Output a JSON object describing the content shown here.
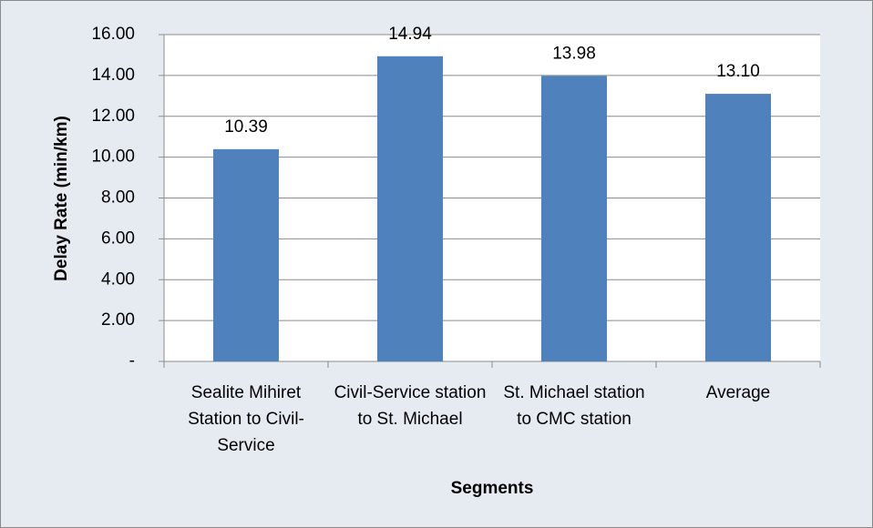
{
  "chart_data": {
    "type": "bar",
    "categories": [
      "Sealite Mihiret Station to Civil-Service",
      "Civil-Service station to St. Michael",
      "St. Michael station to CMC station",
      "Average"
    ],
    "values": [
      10.39,
      14.94,
      13.98,
      13.1
    ],
    "value_labels": [
      "10.39",
      "14.94",
      "13.98",
      "13.10"
    ],
    "color": "#4f81bd",
    "ylim": [
      0,
      16
    ],
    "yticks": [
      {
        "value": 0,
        "label": "-"
      },
      {
        "value": 2,
        "label": "2.00"
      },
      {
        "value": 4,
        "label": "4.00"
      },
      {
        "value": 6,
        "label": "6.00"
      },
      {
        "value": 8,
        "label": "8.00"
      },
      {
        "value": 10,
        "label": "10.00"
      },
      {
        "value": 12,
        "label": "12.00"
      },
      {
        "value": 14,
        "label": "14.00"
      },
      {
        "value": 16,
        "label": "16.00"
      }
    ],
    "ylabel": "Delay Rate (min/km)",
    "xlabel": "Segments",
    "grid": true
  }
}
